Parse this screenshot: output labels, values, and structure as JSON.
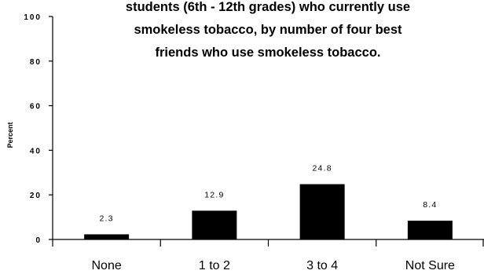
{
  "chart_data": {
    "type": "bar",
    "title_lines": [
      "students (6th - 12th grades) who currently use",
      "smokeless tobacco, by number of four best",
      "friends who use smokeless tobacco."
    ],
    "ylabel": "Percent",
    "categories": [
      "None",
      "1 to 2",
      "3 to 4",
      "Not Sure"
    ],
    "values": [
      2.3,
      12.9,
      24.8,
      8.4
    ],
    "data_labels": [
      "2.3",
      "12.9",
      "24.8",
      "8.4"
    ],
    "ylim": [
      0,
      100
    ],
    "yticks": [
      0,
      20,
      40,
      60,
      80,
      100
    ],
    "ytick_labels": [
      "0",
      "20",
      "40",
      "60",
      "80",
      "100"
    ],
    "bar_color": "#000000",
    "grid": false,
    "legend": "none"
  }
}
